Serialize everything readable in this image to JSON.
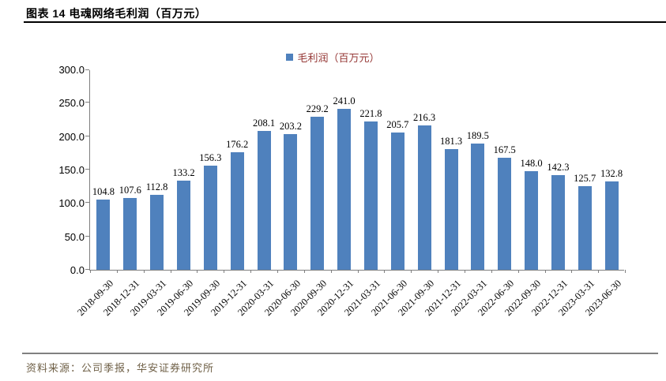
{
  "header": {
    "title": "图表 14 电魂网络毛利润（百万元）"
  },
  "chart_data": {
    "type": "bar",
    "title": "图表 14 电魂网络毛利润（百万元）",
    "series_name": "毛利润（百万元）",
    "categories": [
      "2018-09-30",
      "2018-12-31",
      "2019-03-31",
      "2019-06-30",
      "2019-09-30",
      "2019-12-31",
      "2020-03-31",
      "2020-06-30",
      "2020-09-30",
      "2020-12-31",
      "2021-03-31",
      "2021-06-30",
      "2021-09-30",
      "2021-12-31",
      "2022-03-31",
      "2022-06-30",
      "2022-09-30",
      "2022-12-31",
      "2023-03-31",
      "2023-06-30"
    ],
    "values": [
      104.8,
      107.6,
      112.8,
      133.2,
      156.3,
      176.2,
      208.1,
      203.2,
      229.2,
      241.0,
      221.8,
      205.7,
      216.3,
      181.3,
      189.5,
      167.5,
      148.0,
      142.3,
      125.7,
      132.8
    ],
    "ylim": [
      0,
      300
    ],
    "ytick_step": 50,
    "yticks": [
      "0.0",
      "50.0",
      "100.0",
      "150.0",
      "200.0",
      "250.0",
      "300.0"
    ],
    "grid": false,
    "legend_position": "top-center",
    "data_labels": true,
    "colors": {
      "bar": "#4F81BD",
      "legend_text": "#953735",
      "axis": "#7F7F7F"
    }
  },
  "footer": {
    "source": "资料来源：公司季报，华安证券研究所"
  }
}
